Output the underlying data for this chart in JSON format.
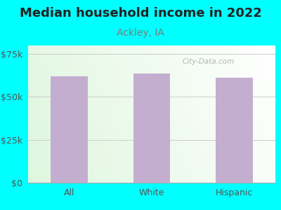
{
  "title": "Median household income in 2022",
  "subtitle": "Ackley, IA",
  "categories": [
    "All",
    "White",
    "Hispanic"
  ],
  "values": [
    62000,
    63500,
    61000
  ],
  "bar_color": "#c4aed0",
  "background_outer": "#00ffff",
  "title_color": "#222222",
  "subtitle_color": "#7a7a7a",
  "tick_label_color": "#555555",
  "ytick_labels": [
    "$0",
    "$25k",
    "$50k",
    "$75k"
  ],
  "ytick_values": [
    0,
    25000,
    50000,
    75000
  ],
  "ylim": [
    0,
    80000
  ],
  "watermark": "City-Data.com",
  "title_fontsize": 13,
  "subtitle_fontsize": 10,
  "tick_fontsize": 9,
  "grad_left": "#d8eed8",
  "grad_right": "#f8faf8"
}
